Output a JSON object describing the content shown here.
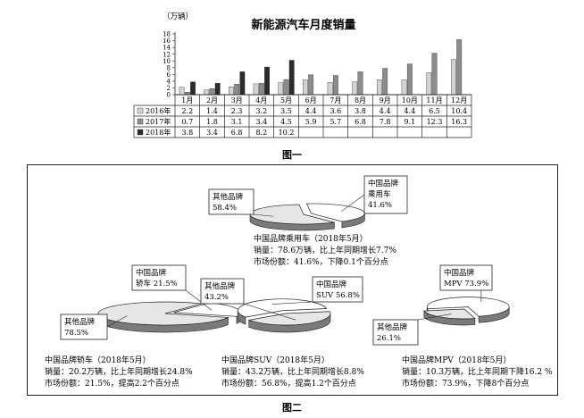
{
  "chart_data": [
    {
      "type": "bar",
      "title": "新能源汽车月度销量",
      "ylabel": "（万辆）",
      "ylim": [
        0,
        18
      ],
      "yticks": [
        0,
        2,
        4,
        6,
        8,
        10,
        12,
        14,
        16,
        18
      ],
      "categories": [
        "1月",
        "2月",
        "3月",
        "4月",
        "5月",
        "6月",
        "7月",
        "8月",
        "9月",
        "10月",
        "11月",
        "12月"
      ],
      "series": [
        {
          "name": "2016年",
          "color": "#d3d3d3",
          "values": [
            2.2,
            1.4,
            2.3,
            3.2,
            3.5,
            4.4,
            3.6,
            3.8,
            4.4,
            4.4,
            6.5,
            10.4
          ]
        },
        {
          "name": "2017年",
          "color": "#8c8c8c",
          "values": [
            0.7,
            1.8,
            3.1,
            3.4,
            4.5,
            5.9,
            5.7,
            6.8,
            7.8,
            9.1,
            12.3,
            16.3
          ]
        },
        {
          "name": "2018年",
          "color": "#2b2b2b",
          "values": [
            3.8,
            3.4,
            6.8,
            8.2,
            10.2,
            null,
            null,
            null,
            null,
            null,
            null,
            null
          ]
        }
      ],
      "table_strings": [
        [
          "2.2",
          "1.4",
          "2.3",
          "3.2",
          "3.5",
          "4.4",
          "3.6",
          "3.8",
          "4.4",
          "4.4",
          "6.5",
          "10.4"
        ],
        [
          "0.7",
          "1.8",
          "3.1",
          "3.4",
          "4.5",
          "5.9",
          "5.7",
          "6.8",
          "7.8",
          "9.1",
          "12.3",
          "16.3"
        ],
        [
          "3.8",
          "3.4",
          "6.8",
          "8.2",
          "10.2",
          "",
          "",
          "",
          "",
          "",
          "",
          ""
        ]
      ],
      "caption": "图一"
    },
    {
      "type": "pie",
      "caption": "图二",
      "pies": [
        {
          "key": "passenger",
          "slices": [
            {
              "label": "其他品牌",
              "percent_text": "58.4%",
              "value": 58.4,
              "color": "#e6e6e6"
            },
            {
              "label": "中国品牌\n乘用车",
              "percent_text": "41.6%",
              "value": 41.6,
              "color": "#ffffff"
            }
          ],
          "text_lines": [
            "中国品牌乘用车（2018年5月）",
            "销量：78.6万辆，比上年同期增长7.7%",
            "市场份额：41.6%，下降0.1个百分点"
          ]
        },
        {
          "key": "sedan",
          "slices": [
            {
              "label": "其他品牌",
              "percent_text": "78.5%",
              "value": 78.5,
              "color": "#e6e6e6"
            },
            {
              "label": "中国品牌\n轿车",
              "percent_text": "21.5%",
              "value": 21.5,
              "color": "#ffffff"
            }
          ],
          "text_lines": [
            "中国品牌轿车（2018年5月）",
            "销量：20.2万辆，比上年同期增长24.8%",
            "市场份额：21.5%，提高2.2个百分点"
          ]
        },
        {
          "key": "suv",
          "slices": [
            {
              "label": "其他品牌",
              "percent_text": "43.2%",
              "value": 43.2,
              "color": "#e6e6e6"
            },
            {
              "label": "中国品牌\nSUV",
              "percent_text": "56.8%",
              "value": 56.8,
              "color": "#ffffff"
            }
          ],
          "text_lines": [
            "中国品牌SUV（2018年5月）",
            "销量：43.2万辆，比上年同期增长8.8%",
            "市场份额：56.8%，提高1.2个百分点"
          ]
        },
        {
          "key": "mpv",
          "slices": [
            {
              "label": "其他品牌",
              "percent_text": "26.1%",
              "value": 26.1,
              "color": "#e6e6e6"
            },
            {
              "label": "中国品牌\nMPV",
              "percent_text": "73.9%",
              "value": 73.9,
              "color": "#ffffff"
            }
          ],
          "text_lines": [
            "中国品牌MPV（2018年5月）",
            "销量：10.3万辆，比上年同期下降16.2 %",
            "市场份额：73.9%，下降8个百分点"
          ]
        }
      ]
    }
  ]
}
